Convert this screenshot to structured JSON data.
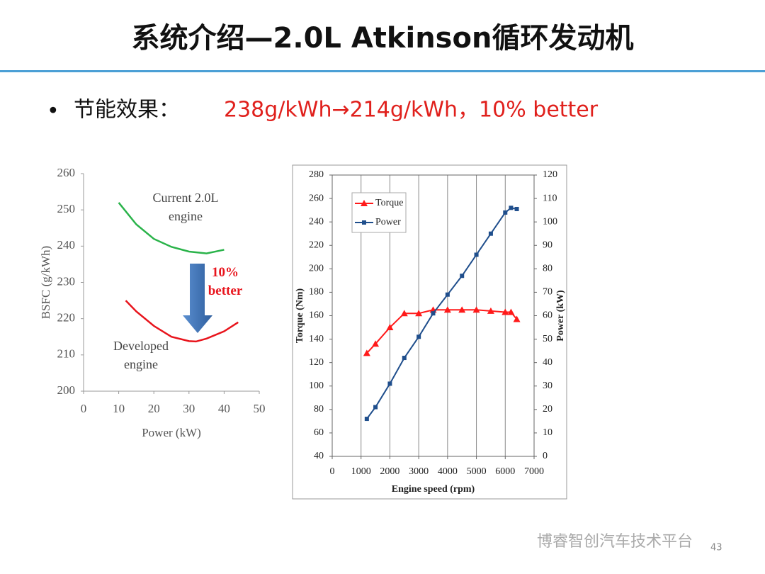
{
  "title": "系统介绍—2.0L Atkinson循环发动机",
  "bullet": {
    "label": "节能效果：",
    "text": "238g/kWh→214g/kWh，10% better"
  },
  "chart_data": [
    {
      "type": "line",
      "xlabel": "Power (kW)",
      "ylabel": "BSFC (g/kWh)",
      "xlim": [
        0,
        50
      ],
      "xticks": [
        0,
        10,
        20,
        30,
        40,
        50
      ],
      "ylim": [
        200,
        260
      ],
      "yticks": [
        200,
        210,
        220,
        230,
        240,
        250,
        260
      ],
      "series": [
        {
          "name": "Current 2.0L engine",
          "color": "#2ab34a",
          "x": [
            10,
            15,
            20,
            25,
            30,
            35,
            40
          ],
          "values": [
            252,
            246,
            242,
            239.8,
            238.5,
            238,
            239
          ]
        },
        {
          "name": "Developed engine",
          "color": "#e8141c",
          "x": [
            12,
            15,
            20,
            25,
            30,
            32,
            35,
            40,
            44
          ],
          "values": [
            225,
            222,
            218,
            215,
            213.8,
            213.7,
            214.5,
            216.5,
            219
          ]
        }
      ],
      "annotations": [
        {
          "text": "10% better",
          "color": "#e8141c"
        }
      ]
    },
    {
      "type": "line",
      "xlabel": "Engine speed (rpm)",
      "ylabel": "Torque (Nm)",
      "y2label": "Power (kW)",
      "xlim": [
        0,
        7000
      ],
      "xticks": [
        0,
        1000,
        2000,
        3000,
        4000,
        5000,
        6000,
        7000
      ],
      "ylim": [
        40,
        280
      ],
      "yticks": [
        40,
        60,
        80,
        100,
        120,
        140,
        160,
        180,
        200,
        220,
        240,
        260,
        280
      ],
      "y2lim": [
        0,
        120
      ],
      "y2ticks": [
        0,
        10,
        20,
        30,
        40,
        50,
        60,
        70,
        80,
        90,
        100,
        110,
        120
      ],
      "grid": "x",
      "legend": "upper left",
      "x": [
        1200,
        1500,
        2000,
        2500,
        3000,
        3500,
        4000,
        4500,
        5000,
        5500,
        6000,
        6200,
        6400
      ],
      "series": [
        {
          "name": "Torque",
          "color": "#ff1a1a",
          "marker": "triangle",
          "values": [
            128,
            136,
            150,
            162,
            162,
            165,
            165,
            165,
            165,
            164,
            163,
            163,
            157
          ]
        },
        {
          "name": "Power",
          "color": "#1f4e8c",
          "marker": "square",
          "axis": "y2",
          "values": [
            16,
            21,
            31,
            42,
            51,
            61,
            69,
            77,
            86,
            95,
            104,
            106,
            105.5
          ]
        }
      ]
    }
  ],
  "watermark": "博睿智创汽车技术平台",
  "page_number": "43"
}
